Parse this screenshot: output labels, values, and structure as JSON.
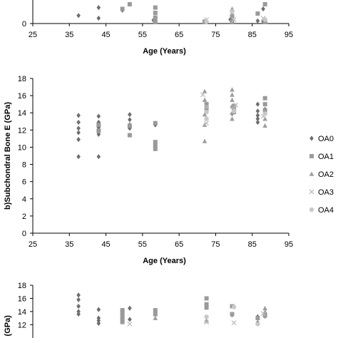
{
  "chart_data": [
    {
      "type": "scatter",
      "panel": "a",
      "xlabel": "Age (Years)",
      "xlim": [
        25,
        95
      ],
      "x_ticks": [
        25,
        35,
        45,
        55,
        65,
        75,
        85,
        95
      ],
      "y_ticks": [
        0
      ],
      "ylim_visible": [
        0,
        3
      ],
      "colors": {
        "OA0": "#6e6e6e",
        "OA1": "#9a9a9a",
        "OA2": "#9e9e9e",
        "OA3": "#bdbdbd",
        "OA4": "#c8c8c8"
      },
      "series": [
        {
          "name": "OA0",
          "points": [
            [
              37.5,
              1.2
            ],
            [
              43,
              0.8
            ],
            [
              43,
              2.4
            ],
            [
              49.5,
              2.0
            ],
            [
              58,
              0.5
            ],
            [
              79,
              0.6
            ],
            [
              86.5,
              0.4
            ],
            [
              88,
              0.3
            ],
            [
              88,
              2.2
            ]
          ]
        },
        {
          "name": "OA1",
          "points": [
            [
              49.5,
              2.2
            ],
            [
              51.5,
              2.9
            ],
            [
              58.5,
              0.3
            ],
            [
              58.5,
              0.9
            ],
            [
              58.5,
              1.6
            ],
            [
              58.5,
              2.4
            ],
            [
              72,
              0.3
            ],
            [
              79.5,
              0.3
            ],
            [
              79.5,
              1.1
            ],
            [
              86.5,
              1.5
            ],
            [
              88.5,
              0.3
            ],
            [
              88.5,
              2.9
            ]
          ]
        },
        {
          "name": "OA2",
          "points": [
            [
              79.5,
              0.5
            ],
            [
              79.5,
              1.4
            ],
            [
              79.5,
              2.2
            ],
            [
              88.5,
              0.4
            ]
          ]
        },
        {
          "name": "OA3",
          "points": [
            [
              72.5,
              0.6
            ],
            [
              80,
              0.6
            ],
            [
              88,
              0.8
            ]
          ]
        },
        {
          "name": "OA4",
          "points": [
            [
              72.5,
              0.3
            ],
            [
              79.5,
              1.8
            ],
            [
              88.5,
              0.6
            ]
          ]
        }
      ]
    },
    {
      "type": "scatter",
      "panel": "b",
      "ylabel": "b)Subchondral Bone E (GPa)",
      "xlabel": "Age (Years)",
      "xlim": [
        25,
        95
      ],
      "ylim": [
        0,
        18
      ],
      "x_ticks": [
        25,
        35,
        45,
        55,
        65,
        75,
        85,
        95
      ],
      "y_ticks": [
        0,
        2,
        4,
        6,
        8,
        10,
        12,
        14,
        16,
        18
      ],
      "legend": [
        "OA0",
        "OA1",
        "OA2",
        "OA3",
        "OA4"
      ],
      "legend_position": "right",
      "colors": {
        "OA0": "#6e6e6e",
        "OA1": "#9a9a9a",
        "OA2": "#9e9e9e",
        "OA3": "#bdbdbd",
        "OA4": "#c8c8c8"
      },
      "series": [
        {
          "name": "OA0",
          "points": [
            [
              37.5,
              8.9
            ],
            [
              37.5,
              10.9
            ],
            [
              37.5,
              11.7
            ],
            [
              37.5,
              12.2
            ],
            [
              37.5,
              12.9
            ],
            [
              37.5,
              13.7
            ],
            [
              43,
              8.9
            ],
            [
              43,
              11.5
            ],
            [
              43,
              12.0
            ],
            [
              43,
              12.3
            ],
            [
              43,
              12.9
            ],
            [
              43,
              13.6
            ],
            [
              51.5,
              12.2
            ],
            [
              51.5,
              12.6
            ],
            [
              51.5,
              13.2
            ],
            [
              51.5,
              13.8
            ],
            [
              58.5,
              12.6
            ],
            [
              79.5,
              13.9
            ],
            [
              79.5,
              14.7
            ],
            [
              86.5,
              12.9
            ],
            [
              86.5,
              13.3
            ],
            [
              86.5,
              13.7
            ],
            [
              86.5,
              14.2
            ],
            [
              86.5,
              15.0
            ],
            [
              88.5,
              13.9
            ],
            [
              88.5,
              14.4
            ]
          ]
        },
        {
          "name": "OA1",
          "points": [
            [
              43,
              11.9
            ],
            [
              43,
              12.6
            ],
            [
              51.5,
              11.4
            ],
            [
              51.5,
              12.5
            ],
            [
              58.5,
              9.8
            ],
            [
              58.5,
              10.2
            ],
            [
              58.5,
              10.6
            ],
            [
              58.5,
              12.8
            ],
            [
              72.5,
              14.5
            ],
            [
              72.5,
              15.0
            ],
            [
              80,
              14.1
            ],
            [
              80,
              14.5
            ],
            [
              80,
              14.8
            ],
            [
              88.5,
              14.3
            ],
            [
              88.5,
              15.0
            ],
            [
              88.5,
              15.7
            ]
          ]
        },
        {
          "name": "OA2",
          "points": [
            [
              72,
              10.7
            ],
            [
              72,
              12.6
            ],
            [
              72,
              13.8
            ],
            [
              72,
              15.5
            ],
            [
              72,
              16.5
            ],
            [
              79.5,
              13.3
            ],
            [
              79.5,
              14.0
            ],
            [
              79.5,
              14.8
            ],
            [
              79.5,
              15.5
            ],
            [
              79.5,
              16.1
            ],
            [
              79.5,
              16.7
            ],
            [
              88.5,
              12.5
            ],
            [
              88.5,
              13.3
            ]
          ]
        },
        {
          "name": "OA3",
          "points": [
            [
              71.5,
              16.1
            ],
            [
              72.5,
              14.7
            ],
            [
              72.5,
              12.8
            ],
            [
              80,
              14.4
            ],
            [
              80.5,
              14.9
            ],
            [
              88,
              13.6
            ]
          ]
        },
        {
          "name": "OA4",
          "points": [
            [
              72.5,
              13.3
            ],
            [
              72.5,
              14.1
            ],
            [
              80,
              14.2
            ],
            [
              88.5,
              13.9
            ]
          ]
        }
      ]
    },
    {
      "type": "scatter",
      "panel": "c",
      "ylabel": "E (GPa)",
      "xlim": [
        25,
        95
      ],
      "ylim_visible": [
        11.6,
        18
      ],
      "y_ticks": [
        12,
        14,
        16,
        18
      ],
      "colors": {
        "OA0": "#6e6e6e",
        "OA1": "#9a9a9a",
        "OA2": "#9e9e9e",
        "OA3": "#bdbdbd",
        "OA4": "#c8c8c8"
      },
      "series": [
        {
          "name": "OA0",
          "points": [
            [
              37.5,
              16.5
            ],
            [
              37.5,
              15.8
            ],
            [
              37.5,
              14.8
            ],
            [
              37.5,
              14.0
            ],
            [
              37.5,
              13.6
            ],
            [
              43,
              14.3
            ],
            [
              43,
              13.0
            ],
            [
              43,
              12.6
            ],
            [
              43,
              12.2
            ],
            [
              51.5,
              14.5
            ],
            [
              51.5,
              12.8
            ],
            [
              58.5,
              13.9
            ],
            [
              79.5,
              13.5
            ],
            [
              86.5,
              13.2
            ],
            [
              86.5,
              12.3
            ],
            [
              88.5,
              13.3
            ]
          ]
        },
        {
          "name": "OA1",
          "points": [
            [
              49.5,
              14.2
            ],
            [
              49.5,
              13.8
            ],
            [
              49.5,
              13.3
            ],
            [
              49.5,
              12.8
            ],
            [
              49.5,
              12.4
            ],
            [
              58.5,
              14.2
            ],
            [
              58.5,
              13.6
            ],
            [
              72.5,
              16.0
            ],
            [
              72.5,
              15.1
            ],
            [
              72.5,
              14.6
            ],
            [
              79.5,
              14.8
            ],
            [
              79.5,
              13.6
            ],
            [
              86.5,
              13.0
            ],
            [
              88.5,
              13.4
            ]
          ]
        },
        {
          "name": "OA2",
          "points": [
            [
              58.5,
              13.0
            ],
            [
              72.5,
              12.6
            ],
            [
              79.5,
              13.6
            ],
            [
              88.5,
              14.5
            ],
            [
              88.5,
              14.0
            ]
          ]
        },
        {
          "name": "OA3",
          "points": [
            [
              51.5,
              12.1
            ],
            [
              72.5,
              12.4
            ],
            [
              80,
              12.3
            ],
            [
              88,
              13.7
            ]
          ]
        },
        {
          "name": "OA4",
          "points": [
            [
              72.5,
              13.2
            ],
            [
              80,
              14.7
            ],
            [
              86.5,
              12.1
            ]
          ]
        }
      ]
    }
  ]
}
